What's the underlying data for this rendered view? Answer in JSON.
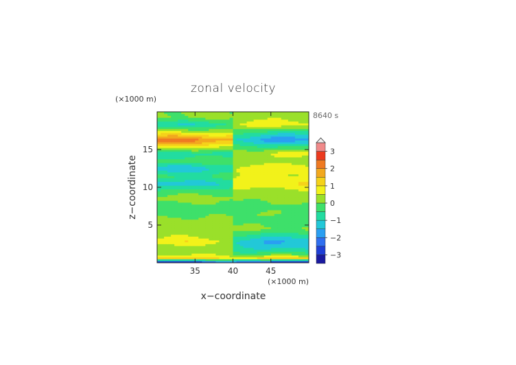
{
  "chart_data": {
    "type": "heatmap",
    "title": "zonal velocity",
    "time_label": "8640 s",
    "xlabel": "x−coordinate",
    "ylabel": "z−coordinate",
    "x_unit": "(×1000 m)",
    "y_unit": "(×1000 m)",
    "xlim": [
      30,
      50
    ],
    "ylim": [
      0,
      20
    ],
    "x_ticks": [
      "35",
      "40",
      "45"
    ],
    "y_ticks": [
      "5",
      "10",
      "15"
    ],
    "x_tick_values": [
      35,
      40,
      45
    ],
    "y_tick_values": [
      5,
      10,
      15
    ],
    "colorbar": {
      "levels": [
        -3.5,
        -3,
        -2.5,
        -2,
        -1.5,
        -1,
        -0.5,
        0,
        0.5,
        1,
        1.5,
        2,
        2.5,
        3,
        3.5
      ],
      "colors": [
        "#1a1aa0",
        "#1f3fd6",
        "#2f6ff0",
        "#2a9ff2",
        "#22c8d8",
        "#22dca0",
        "#3ee06a",
        "#9ae02a",
        "#f2f21a",
        "#f5d21a",
        "#f2a81e",
        "#ef7a22",
        "#ec3a1e",
        "#f08a8a"
      ],
      "tick_labels": [
        "3",
        "2",
        "1",
        "0",
        "−1",
        "−2",
        "−3"
      ],
      "tick_values": [
        3,
        2,
        1,
        0,
        -1,
        -2,
        -3
      ],
      "extend": "max"
    },
    "field_bands": [
      {
        "z": 0.1,
        "left": -3,
        "right": -3
      },
      {
        "z": 0.6,
        "left": 1.2,
        "right": 1.2
      },
      {
        "z": 1.2,
        "left": 0.4,
        "right": -0.3
      },
      {
        "z": 2.0,
        "left": 0.2,
        "right": -1.2
      },
      {
        "z": 2.8,
        "left": 0.9,
        "right": -1.6
      },
      {
        "z": 3.6,
        "left": 0.4,
        "right": -0.8
      },
      {
        "z": 4.5,
        "left": 0.2,
        "right": 0.1
      },
      {
        "z": 5.5,
        "left": 0.3,
        "right": -0.3
      },
      {
        "z": 6.5,
        "left": -0.2,
        "right": -0.1
      },
      {
        "z": 7.5,
        "left": -0.3,
        "right": -0.2
      },
      {
        "z": 8.5,
        "left": 0.3,
        "right": 0.2
      },
      {
        "z": 9.5,
        "left": -0.3,
        "right": 0.3
      },
      {
        "z": 10.5,
        "left": -1.3,
        "right": 1.1
      },
      {
        "z": 11.5,
        "left": -0.5,
        "right": 0.6
      },
      {
        "z": 12.5,
        "left": -1.4,
        "right": 0.9
      },
      {
        "z": 13.5,
        "left": -0.2,
        "right": 0.2
      },
      {
        "z": 14.5,
        "left": -0.9,
        "right": 0.6
      },
      {
        "z": 15.5,
        "left": 1.1,
        "right": -0.6
      },
      {
        "z": 16.3,
        "left": 2.4,
        "right": -1.8
      },
      {
        "z": 17.3,
        "left": 0.6,
        "right": -0.7
      },
      {
        "z": 18.3,
        "left": -1.0,
        "right": 0.8
      },
      {
        "z": 19.3,
        "left": 0.1,
        "right": 0.3
      }
    ]
  }
}
